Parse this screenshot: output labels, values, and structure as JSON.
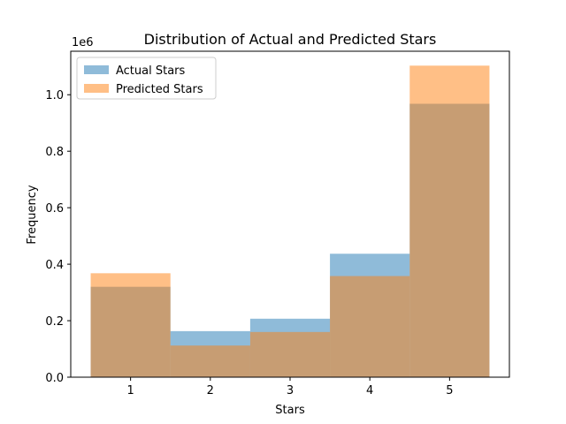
{
  "chart_data": {
    "type": "bar",
    "title": "Distribution of Actual and Predicted Stars",
    "xlabel": "Stars",
    "ylabel": "Frequency",
    "y_scale_label": "1e6",
    "categories": [
      "1",
      "2",
      "3",
      "4",
      "5"
    ],
    "x_ticks": [
      "1",
      "2",
      "3",
      "4",
      "5"
    ],
    "y_ticks": [
      "0.0",
      "0.2",
      "0.4",
      "0.6",
      "0.8",
      "1.0"
    ],
    "ylim": [
      0,
      1154000
    ],
    "xlim": [
      0.25,
      5.75
    ],
    "grid": false,
    "legend_position": "top-left",
    "series": [
      {
        "name": "Actual Stars",
        "color": "#1f77b4",
        "opacity": 0.5,
        "values": [
          320000,
          163000,
          207000,
          437000,
          968000
        ]
      },
      {
        "name": "Predicted Stars",
        "color": "#ff7f0e",
        "opacity": 0.5,
        "values": [
          368000,
          112000,
          160000,
          358000,
          1103000
        ]
      }
    ]
  }
}
